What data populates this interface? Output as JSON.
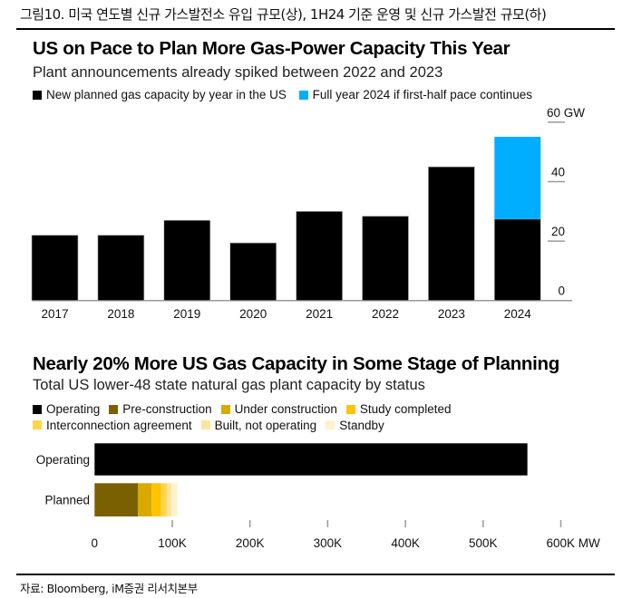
{
  "figure": {
    "caption": "그림10. 미국 연도별 신규 가스발전소 유입 규모(상), 1H24 기준 운영 및 신규 가스발전 규모(하)",
    "source": "자료: Bloomberg, iM증권 리서치본부"
  },
  "chart_data": [
    {
      "type": "bar",
      "stacked": true,
      "title": "US on Pace to Plan More Gas-Power Capacity This Year",
      "subtitle": "Plant announcements already spiked between 2022 and 2023",
      "xlabel": "",
      "ylabel": "",
      "y_unit": "GW",
      "ylim": [
        0,
        60
      ],
      "yticks": [
        0,
        20,
        40,
        60
      ],
      "ytick_labels": [
        "0",
        "20",
        "40",
        "60 GW"
      ],
      "y_axis_side": "right",
      "grid": false,
      "legend_position": "top-left",
      "categories": [
        "2017",
        "2018",
        "2019",
        "2020",
        "2021",
        "2022",
        "2023",
        "2024"
      ],
      "series": [
        {
          "name": "New planned gas capacity by year in the US",
          "color": "#000000",
          "values": [
            22,
            22,
            27,
            19.4,
            30,
            28.4,
            45,
            27.4
          ]
        },
        {
          "name": "Full year 2024 if first-half pace continues",
          "color": "#00AEFF",
          "values": [
            0,
            0,
            0,
            0,
            0,
            0,
            0,
            27.7
          ]
        }
      ]
    },
    {
      "type": "bar",
      "orientation": "horizontal",
      "stacked": true,
      "title": "Nearly 20% More US Gas Capacity in Some Stage of Planning",
      "subtitle": "Total US lower-48 state natural gas plant capacity by status",
      "xlabel": "",
      "ylabel": "",
      "x_unit": "MW",
      "xlim": [
        0,
        600000
      ],
      "xticks": [
        0,
        100000,
        200000,
        300000,
        400000,
        500000,
        600000
      ],
      "xtick_labels": [
        "0",
        "100K",
        "200K",
        "300K",
        "400K",
        "500K",
        "600K MW"
      ],
      "grid": false,
      "legend_position": "top-left",
      "categories": [
        "Operating",
        "Planned"
      ],
      "series": [
        {
          "name": "Operating",
          "color": "#000000",
          "values": [
            557000,
            0
          ]
        },
        {
          "name": "Pre-construction",
          "color": "#7A6000",
          "values": [
            0,
            56000
          ]
        },
        {
          "name": "Under construction",
          "color": "#DAA900",
          "values": [
            0,
            17500
          ]
        },
        {
          "name": "Study completed",
          "color": "#FFC300",
          "values": [
            0,
            12000
          ]
        },
        {
          "name": "Interconnection agreement",
          "color": "#FFD54A",
          "values": [
            0,
            7400
          ]
        },
        {
          "name": "Built, not operating",
          "color": "#FFE49A",
          "values": [
            0,
            6200
          ]
        },
        {
          "name": "Standby",
          "color": "#FFF1CF",
          "values": [
            0,
            7500
          ]
        }
      ]
    }
  ]
}
